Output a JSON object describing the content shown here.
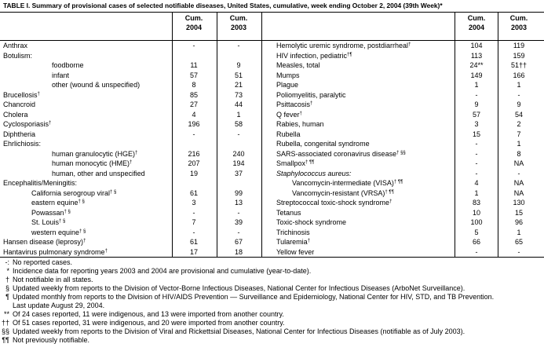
{
  "title": "TABLE I. Summary of provisional cases of selected notifiable diseases, United States, cumulative, week ending October 2, 2004 (39th Week)*",
  "columns": [
    [
      "Cum.",
      "2004"
    ],
    [
      "Cum.",
      "2003"
    ]
  ],
  "left": [
    {
      "name": "Anthrax",
      "c2004": "-",
      "c2003": "-"
    },
    {
      "name": "Botulism:",
      "rows": [
        {
          "name": "foodborne",
          "c2004": 11,
          "c2003": 9
        },
        {
          "name": "infant",
          "c2004": 57,
          "c2003": 51
        },
        {
          "name": "other (wound & unspecified)",
          "c2004": 8,
          "c2003": 21
        }
      ]
    },
    {
      "name": "Brucellosis",
      "sup": "†",
      "c2004": 85,
      "c2003": 73
    },
    {
      "name": "Chancroid",
      "c2004": 27,
      "c2003": 44
    },
    {
      "name": "Cholera",
      "c2004": 4,
      "c2003": 1
    },
    {
      "name": "Cyclosporiasis",
      "sup": "†",
      "c2004": 196,
      "c2003": 58
    },
    {
      "name": "Diphtheria",
      "c2004": "-",
      "c2003": "-"
    },
    {
      "name": "Ehrlichiosis:",
      "rows": [
        {
          "name": "human granulocytic (HGE)",
          "sup": "†",
          "c2004": 216,
          "c2003": 240
        },
        {
          "name": "human monocytic (HME)",
          "sup": "†",
          "c2004": 207,
          "c2003": 194
        },
        {
          "name": "human, other and unspecified",
          "c2004": 19,
          "c2003": 37
        }
      ]
    },
    {
      "name": "Encephalitis/Meningitis:",
      "rows": [
        {
          "name": "California serogroup viral",
          "sup": "† §",
          "c2004": 61,
          "c2003": 99
        },
        {
          "name": "eastern equine",
          "sup": "† §",
          "c2004": 3,
          "c2003": 13
        },
        {
          "name": "Powassan",
          "sup": "† §",
          "c2004": "-",
          "c2003": "-"
        },
        {
          "name": "St. Louis",
          "sup": "† §",
          "c2004": 7,
          "c2003": 39
        },
        {
          "name": "western equine",
          "sup": "† §",
          "c2004": "-",
          "c2003": "-"
        }
      ]
    },
    {
      "name": "Hansen disease (leprosy)",
      "sup": "†",
      "c2004": 61,
      "c2003": 67
    },
    {
      "name": "Hantavirus pulmonary syndrome",
      "sup": "†",
      "c2004": 17,
      "c2003": 18
    }
  ],
  "right": [
    {
      "name": "Hemolytic uremic syndrome, postdiarrheal",
      "sup": "†",
      "c2004": 104,
      "c2003": 119
    },
    {
      "name": "HIV infection, pediatric",
      "sup": "†¶",
      "c2004": 113,
      "c2003": 159
    },
    {
      "name": "Measles, total",
      "c2004": "24**",
      "c2003": "51††"
    },
    {
      "name": "Mumps",
      "c2004": 149,
      "c2003": 166
    },
    {
      "name": "Plague",
      "c2004": 1,
      "c2003": 1
    },
    {
      "name": "Poliomyelitis, paralytic",
      "c2004": "-",
      "c2003": "-"
    },
    {
      "name": "Psittacosis",
      "sup": "†",
      "c2004": 9,
      "c2003": 9
    },
    {
      "name": "Q fever",
      "sup": "†",
      "c2004": 57,
      "c2003": 54
    },
    {
      "name": "Rabies, human",
      "c2004": 3,
      "c2003": 2
    },
    {
      "name": "Rubella",
      "c2004": 15,
      "c2003": 7
    },
    {
      "name": "Rubella, congenital syndrome",
      "c2004": "-",
      "c2003": 1
    },
    {
      "name": "SARS-associated coronavirus disease",
      "sup": "† §§",
      "c2004": "-",
      "c2003": 8
    },
    {
      "name": "Smallpox",
      "sup": "† ¶¶",
      "c2004": "-",
      "c2003": "NA"
    },
    {
      "name": "Staphylococcus aureus:",
      "italic": true,
      "c2004": "-",
      "c2003": "-",
      "rows": [
        {
          "name": "Vancomycin-intermediate (VISA)",
          "sup": "† ¶¶",
          "c2004": 4,
          "c2003": "NA"
        },
        {
          "name": "Vancomycin-resistant (VRSA)",
          "sup": "† ¶¶",
          "c2004": 1,
          "c2003": "NA"
        }
      ]
    },
    {
      "name": "Streptococcal toxic-shock syndrome",
      "sup": "†",
      "c2004": 83,
      "c2003": 130
    },
    {
      "name": "Tetanus",
      "c2004": 10,
      "c2003": 15
    },
    {
      "name": "Toxic-shock syndrome",
      "c2004": 100,
      "c2003": 96
    },
    {
      "name": "Trichinosis",
      "c2004": 5,
      "c2003": 1
    },
    {
      "name": "Tularemia",
      "sup": "†",
      "c2004": 66,
      "c2003": 65
    },
    {
      "name": "Yellow fever",
      "c2004": "-",
      "c2003": "-"
    }
  ],
  "footnotes": [
    {
      "mark": "-:",
      "text": "No reported cases."
    },
    {
      "mark": "*",
      "text": "Incidence data for reporting years 2003 and 2004 are provisional and cumulative (year-to-date)."
    },
    {
      "mark": "†",
      "text": "Not notifiable in all states."
    },
    {
      "mark": "§",
      "text": "Updated weekly from reports to the Division of Vector-Borne Infectious Diseases, National Center for Infectious Diseases (ArboNet Surveillance)."
    },
    {
      "mark": "¶",
      "text": "Updated monthly from reports to the Division of HIV/AIDS Prevention — Surveillance and Epidemiology, National Center for HIV, STD, and TB Prevention.",
      "text2": "Last update August 29, 2004."
    },
    {
      "mark": "**",
      "text": "Of 24 cases reported, 11 were indigenous, and 13 were imported from another country."
    },
    {
      "mark": "††",
      "text": "Of 51 cases reported, 31 were indigenous, and 20 were imported from another country."
    },
    {
      "mark": "§§",
      "text": "Updated weekly from reports to the Division of Viral and Rickettsial Diseases, National Center for Infectious Diseases (notifiable as of July 2003)."
    },
    {
      "mark": "¶¶",
      "text": "Not previously notifiable."
    }
  ]
}
